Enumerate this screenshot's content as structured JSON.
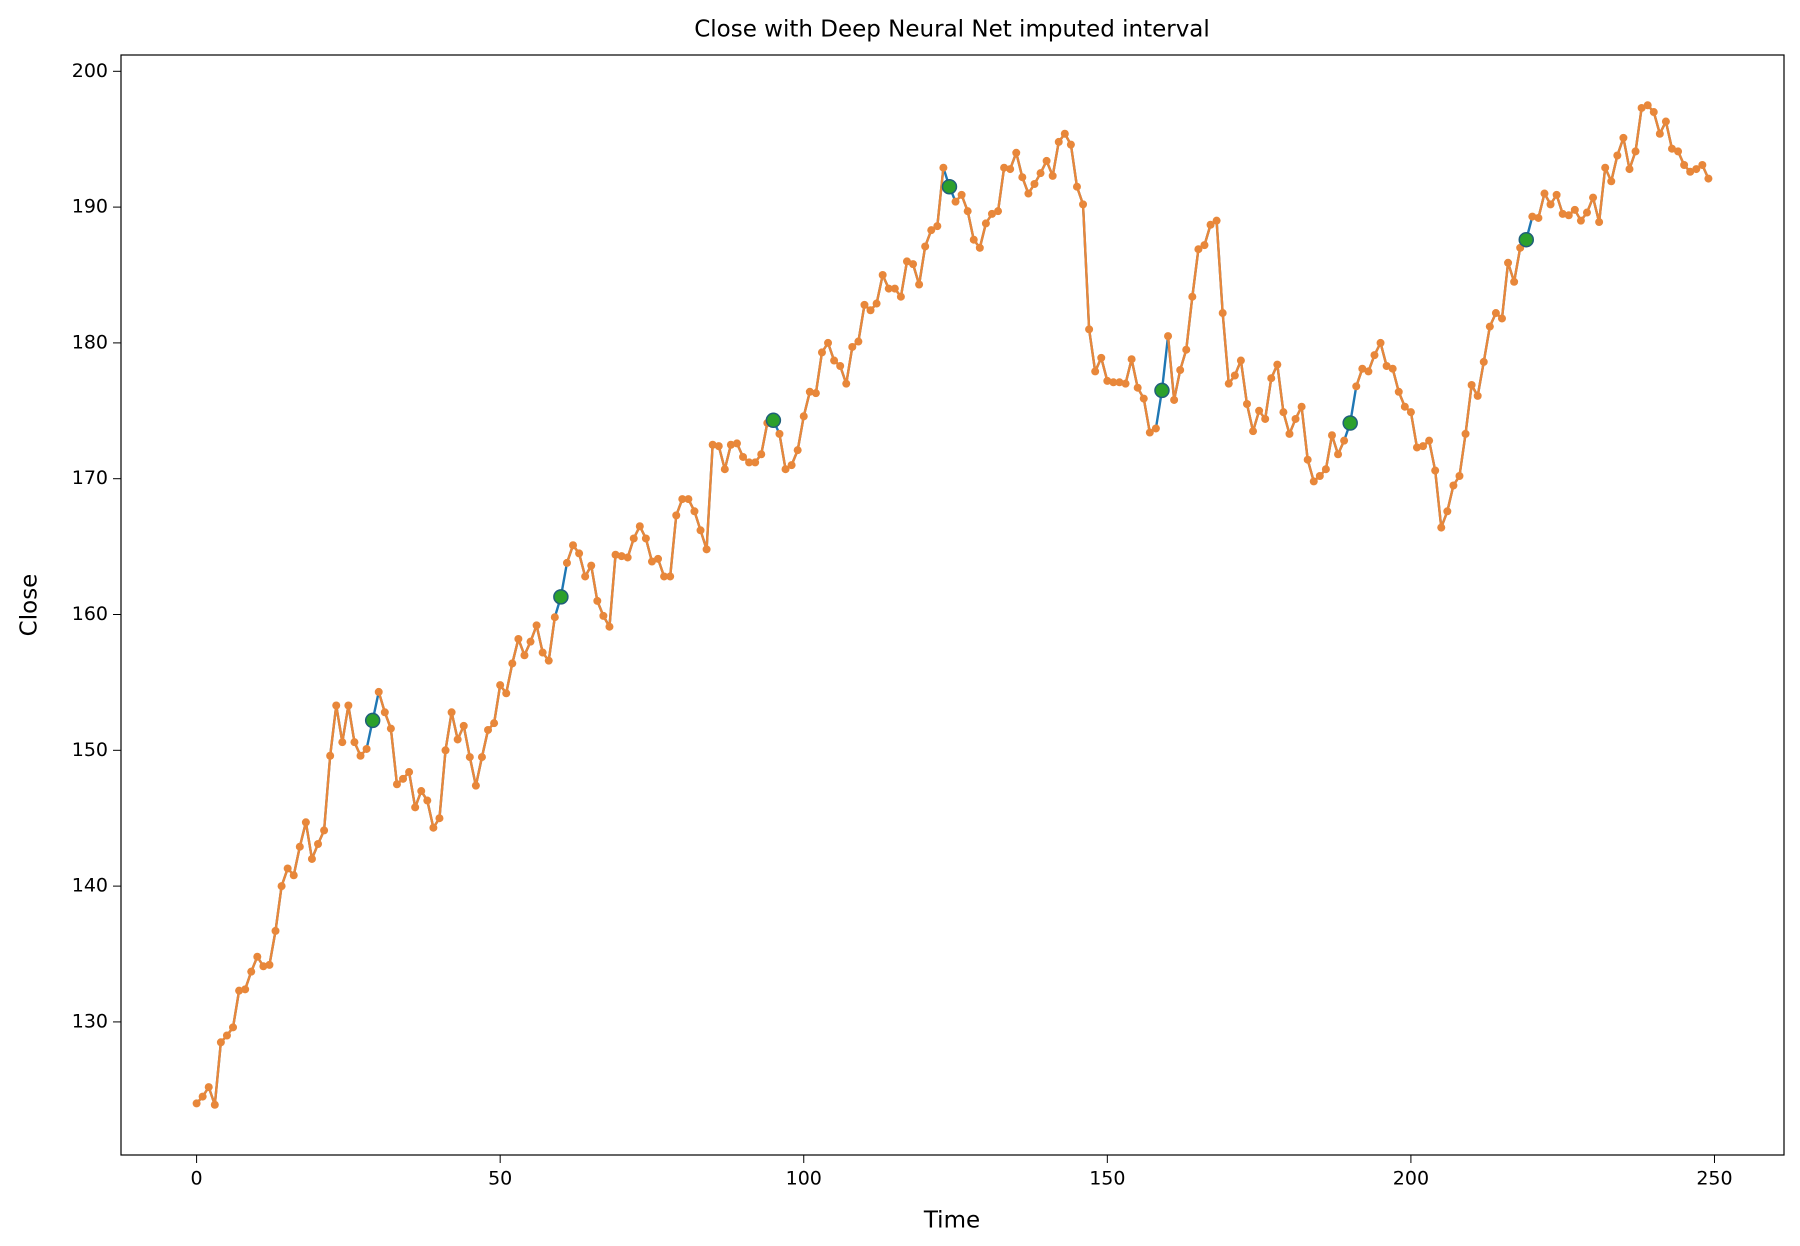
{
  "chart_data": {
    "type": "line",
    "title": "Close with Deep Neural Net imputed interval",
    "x_label": "Time",
    "y_label": "Close",
    "x": [
      0,
      1,
      2,
      3,
      4,
      5,
      6,
      7,
      8,
      9,
      10,
      11,
      12,
      13,
      14,
      15,
      16,
      17,
      18,
      19,
      20,
      21,
      22,
      23,
      24,
      25,
      26,
      27,
      28,
      29,
      30,
      31,
      32,
      33,
      34,
      35,
      36,
      37,
      38,
      39,
      40,
      41,
      42,
      43,
      44,
      45,
      46,
      47,
      48,
      49,
      50,
      51,
      52,
      53,
      54,
      55,
      56,
      57,
      58,
      59,
      60,
      61,
      62,
      63,
      64,
      65,
      66,
      67,
      68,
      69,
      70,
      71,
      72,
      73,
      74,
      75,
      76,
      77,
      78,
      79,
      80,
      81,
      82,
      83,
      84,
      85,
      86,
      87,
      88,
      89,
      90,
      91,
      92,
      93,
      94,
      95,
      96,
      97,
      98,
      99,
      100,
      101,
      102,
      103,
      104,
      105,
      106,
      107,
      108,
      109,
      110,
      111,
      112,
      113,
      114,
      115,
      116,
      117,
      118,
      119,
      120,
      121,
      122,
      123,
      124,
      125,
      126,
      127,
      128,
      129,
      130,
      131,
      132,
      133,
      134,
      135,
      136,
      137,
      138,
      139,
      140,
      141,
      142,
      143,
      144,
      145,
      146,
      147,
      148,
      149,
      150,
      151,
      152,
      153,
      154,
      155,
      156,
      157,
      158,
      159,
      160,
      161,
      162,
      163,
      164,
      165,
      166,
      167,
      168,
      169,
      170,
      171,
      172,
      173,
      174,
      175,
      176,
      177,
      178,
      179,
      180,
      181,
      182,
      183,
      184,
      185,
      186,
      187,
      188,
      189,
      190,
      191,
      192,
      193,
      194,
      195,
      196,
      197,
      198,
      199,
      200,
      201,
      202,
      203,
      204,
      205,
      206,
      207,
      208,
      209,
      210,
      211,
      212,
      213,
      214,
      215,
      216,
      217,
      218,
      219,
      220,
      221,
      222,
      223,
      224,
      225,
      226,
      227,
      228,
      229,
      230,
      231,
      232,
      233,
      234,
      235,
      236,
      237,
      238,
      239,
      240,
      241,
      242,
      243,
      244,
      245,
      246,
      247,
      248,
      249
    ],
    "series": [
      {
        "color": "#1f77b4",
        "values": [
          124.0,
          124.5,
          125.2,
          123.9,
          128.5,
          129.0,
          129.6,
          132.3,
          132.4,
          133.7,
          134.8,
          134.1,
          134.2,
          136.7,
          140.0,
          141.3,
          140.8,
          142.9,
          144.7,
          142.0,
          143.1,
          144.1,
          149.6,
          153.3,
          150.6,
          153.3,
          150.6,
          149.6,
          150.1,
          152.2,
          154.3,
          152.8,
          151.6,
          147.5,
          147.9,
          148.4,
          145.8,
          147.0,
          146.3,
          144.3,
          145.0,
          150.0,
          152.8,
          150.8,
          151.8,
          149.5,
          147.4,
          149.5,
          151.5,
          152.0,
          154.8,
          154.2,
          156.4,
          158.2,
          157.0,
          158.0,
          159.2,
          157.2,
          156.6,
          159.8,
          161.3,
          163.8,
          165.1,
          164.5,
          162.8,
          163.6,
          161.0,
          159.9,
          159.1,
          164.4,
          164.3,
          164.2,
          165.6,
          166.5,
          165.6,
          163.9,
          164.1,
          162.8,
          162.8,
          167.3,
          168.5,
          168.5,
          167.6,
          166.2,
          164.8,
          172.5,
          172.4,
          170.7,
          172.5,
          172.6,
          171.6,
          171.2,
          171.2,
          171.8,
          174.1,
          174.3,
          173.3,
          170.7,
          171.0,
          172.1,
          174.6,
          176.4,
          176.3,
          179.3,
          180.0,
          178.7,
          178.3,
          177.0,
          179.7,
          180.1,
          182.8,
          182.4,
          182.9,
          185.0,
          184.0,
          184.0,
          183.4,
          186.0,
          185.8,
          184.3,
          187.1,
          188.3,
          188.6,
          192.9,
          191.5,
          190.4,
          190.9,
          189.7,
          187.6,
          187.0,
          188.8,
          189.5,
          189.7,
          192.9,
          192.8,
          194.0,
          192.2,
          191.0,
          191.7,
          192.5,
          193.4,
          192.3,
          194.8,
          195.4,
          194.6,
          191.5,
          190.2,
          181.0,
          177.9,
          178.9,
          177.2,
          177.1,
          177.1,
          177.0,
          178.8,
          176.7,
          175.9,
          173.4,
          173.7,
          176.5,
          180.5,
          175.8,
          178.0,
          179.5,
          183.4,
          186.9,
          187.2,
          188.7,
          189.0,
          182.2,
          177.0,
          177.6,
          178.7,
          175.5,
          173.5,
          175.0,
          174.4,
          177.4,
          178.4,
          174.9,
          173.3,
          174.4,
          175.3,
          171.4,
          169.8,
          170.2,
          170.7,
          173.2,
          171.8,
          172.8,
          174.1,
          176.8,
          178.1,
          177.9,
          179.1,
          180.0,
          178.3,
          178.1,
          176.4,
          175.3,
          174.9,
          172.3,
          172.4,
          172.8,
          170.6,
          166.4,
          167.6,
          169.5,
          170.2,
          173.3,
          176.9,
          176.1,
          178.6,
          181.2,
          182.2,
          181.8,
          185.9,
          184.5,
          187.0,
          187.6,
          189.3,
          189.2,
          191.0,
          190.2,
          190.9,
          189.5,
          189.4,
          189.8,
          189.0,
          189.6,
          190.7,
          188.9,
          192.9,
          191.9,
          193.8,
          195.1,
          192.8,
          194.1,
          197.3,
          197.5,
          197.0,
          195.4,
          196.3,
          194.3,
          194.1,
          193.1,
          192.6,
          192.8,
          193.1,
          192.1
        ]
      },
      {
        "color": "#e8873a",
        "markers": true,
        "values": [
          124.0,
          124.5,
          125.2,
          123.9,
          128.5,
          129.0,
          129.6,
          132.3,
          132.4,
          133.7,
          134.8,
          134.1,
          134.2,
          136.7,
          140.0,
          141.3,
          140.8,
          142.9,
          144.7,
          142.0,
          143.1,
          144.1,
          149.6,
          153.3,
          150.6,
          153.3,
          150.6,
          149.6,
          150.1,
          null,
          154.3,
          152.8,
          151.6,
          147.5,
          147.9,
          148.4,
          145.8,
          147.0,
          146.3,
          144.3,
          145.0,
          150.0,
          152.8,
          150.8,
          151.8,
          149.5,
          147.4,
          149.5,
          151.5,
          152.0,
          154.8,
          154.2,
          156.4,
          158.2,
          157.0,
          158.0,
          159.2,
          157.2,
          156.6,
          159.8,
          null,
          163.8,
          165.1,
          164.5,
          162.8,
          163.6,
          161.0,
          159.9,
          159.1,
          164.4,
          164.3,
          164.2,
          165.6,
          166.5,
          165.6,
          163.9,
          164.1,
          162.8,
          162.8,
          167.3,
          168.5,
          168.5,
          167.6,
          166.2,
          164.8,
          172.5,
          172.4,
          170.7,
          172.5,
          172.6,
          171.6,
          171.2,
          171.2,
          171.8,
          174.1,
          null,
          173.3,
          170.7,
          171.0,
          172.1,
          174.6,
          176.4,
          176.3,
          179.3,
          180.0,
          178.7,
          178.3,
          177.0,
          179.7,
          180.1,
          182.8,
          182.4,
          182.9,
          185.0,
          184.0,
          184.0,
          183.4,
          186.0,
          185.8,
          184.3,
          187.1,
          188.3,
          188.6,
          192.9,
          null,
          190.4,
          190.9,
          189.7,
          187.6,
          187.0,
          188.8,
          189.5,
          189.7,
          192.9,
          192.8,
          194.0,
          192.2,
          191.0,
          191.7,
          192.5,
          193.4,
          192.3,
          194.8,
          195.4,
          194.6,
          191.5,
          190.2,
          181.0,
          177.9,
          178.9,
          177.2,
          177.1,
          177.1,
          177.0,
          178.8,
          176.7,
          175.9,
          173.4,
          173.7,
          null,
          180.5,
          175.8,
          178.0,
          179.5,
          183.4,
          186.9,
          187.2,
          188.7,
          189.0,
          182.2,
          177.0,
          177.6,
          178.7,
          175.5,
          173.5,
          175.0,
          174.4,
          177.4,
          178.4,
          174.9,
          173.3,
          174.4,
          175.3,
          171.4,
          169.8,
          170.2,
          170.7,
          173.2,
          171.8,
          172.8,
          null,
          176.8,
          178.1,
          177.9,
          179.1,
          180.0,
          178.3,
          178.1,
          176.4,
          175.3,
          174.9,
          172.3,
          172.4,
          172.8,
          170.6,
          166.4,
          167.6,
          169.5,
          170.2,
          173.3,
          176.9,
          176.1,
          178.6,
          181.2,
          182.2,
          181.8,
          185.9,
          184.5,
          187.0,
          null,
          189.3,
          189.2,
          191.0,
          190.2,
          190.9,
          189.5,
          189.4,
          189.8,
          189.0,
          189.6,
          190.7,
          188.9,
          192.9,
          191.9,
          193.8,
          195.1,
          192.8,
          194.1,
          197.3,
          197.5,
          197.0,
          195.4,
          196.3,
          194.3,
          194.1,
          193.1,
          192.6,
          192.8,
          193.1,
          192.1
        ]
      },
      {
        "color": "#2ca02c",
        "type": "scatter",
        "x": [
          29,
          60,
          95,
          124,
          159,
          190,
          219
        ],
        "values": [
          152.2,
          161.3,
          174.3,
          191.5,
          176.5,
          174.1,
          187.6
        ]
      }
    ],
    "xlim": [
      -12.45,
      261.45
    ],
    "ylim": [
      120.2,
      201.2
    ],
    "xticks": [
      0,
      50,
      100,
      150,
      200,
      250
    ],
    "yticks": [
      130,
      140,
      150,
      160,
      170,
      180,
      190,
      200
    ]
  }
}
